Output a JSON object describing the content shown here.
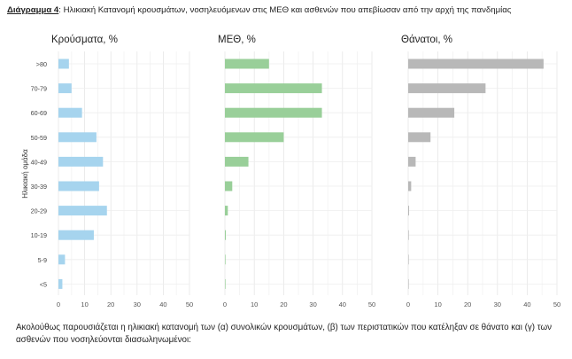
{
  "caption": {
    "label": "Διάγραμμα 4",
    "text": ": Ηλικιακή Κατανομή κρουσμάτων, νοσηλευόμενων στις ΜΕΘ και ασθενών που απεβίωσαν από την αρχή της πανδημίας"
  },
  "note": "Ακολούθως παρουσιάζεται η ηλικιακή κατανομή των (α) συνολικών κρουσμάτων, (β) των περιστατικών που κατέληξαν σε θάνατο και (γ) των ασθενών που νοσηλεύονται διασωληνωμένοι:",
  "chart_data": {
    "type": "bar",
    "orientation": "horizontal",
    "ylabel": "Ηλικιακή ομάδα",
    "categories": [
      ">80",
      "70-79",
      "60-69",
      "50-59",
      "40-49",
      "30-39",
      "20-29",
      "10-19",
      "5-9",
      "<5"
    ],
    "xlim": [
      0,
      50
    ],
    "xticks": [
      "0",
      "10",
      "20",
      "30",
      "40",
      "50"
    ],
    "grid": true,
    "legend": "none",
    "panels": [
      {
        "title": "Κρούσματα, %",
        "color": "#a6d4ee",
        "values": [
          4.0,
          5.0,
          9.0,
          14.5,
          17.0,
          15.5,
          18.5,
          13.5,
          2.5,
          1.5
        ]
      },
      {
        "title": "ΜΕΘ, %",
        "color": "#99cf99",
        "values": [
          15.0,
          33.0,
          33.0,
          20.0,
          8.0,
          2.5,
          1.0,
          0.3,
          0.2,
          0.2
        ]
      },
      {
        "title": "Θάνατοι, %",
        "color": "#b8b8b8",
        "values": [
          45.5,
          26.0,
          15.5,
          7.5,
          2.5,
          1.0,
          0.3,
          0.2,
          0.1,
          0.1
        ]
      }
    ]
  }
}
